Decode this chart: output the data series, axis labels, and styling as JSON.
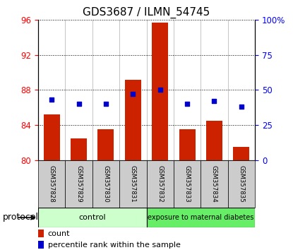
{
  "title": "GDS3687 / ILMN_54745",
  "samples": [
    "GSM357828",
    "GSM357829",
    "GSM357830",
    "GSM357831",
    "GSM357832",
    "GSM357833",
    "GSM357834",
    "GSM357835"
  ],
  "bar_values": [
    85.2,
    82.5,
    83.5,
    89.2,
    95.7,
    83.5,
    84.5,
    81.5
  ],
  "percentile_values": [
    43,
    40,
    40,
    47,
    50,
    40,
    42,
    38
  ],
  "bar_color": "#cc2200",
  "dot_color": "#0000cc",
  "left_ylim": [
    80,
    96
  ],
  "left_yticks": [
    80,
    84,
    88,
    92,
    96
  ],
  "right_ylim": [
    0,
    100
  ],
  "right_yticks": [
    0,
    25,
    50,
    75,
    100
  ],
  "right_yticklabels": [
    "0",
    "25",
    "50",
    "75",
    "100%"
  ],
  "control_samples": 4,
  "group_labels": [
    "control",
    "exposure to maternal diabetes"
  ],
  "group_colors": [
    "#ccffcc",
    "#66ee66"
  ],
  "xlabel_label": "protocol",
  "legend_items": [
    "count",
    "percentile rank within the sample"
  ],
  "legend_colors": [
    "#cc2200",
    "#0000cc"
  ],
  "title_fontsize": 11,
  "tick_fontsize": 8.5,
  "bar_bottom": 80,
  "dot_size": 22,
  "background_color": "#ffffff",
  "plot_bg": "#ffffff",
  "xtick_bg": "#cccccc"
}
